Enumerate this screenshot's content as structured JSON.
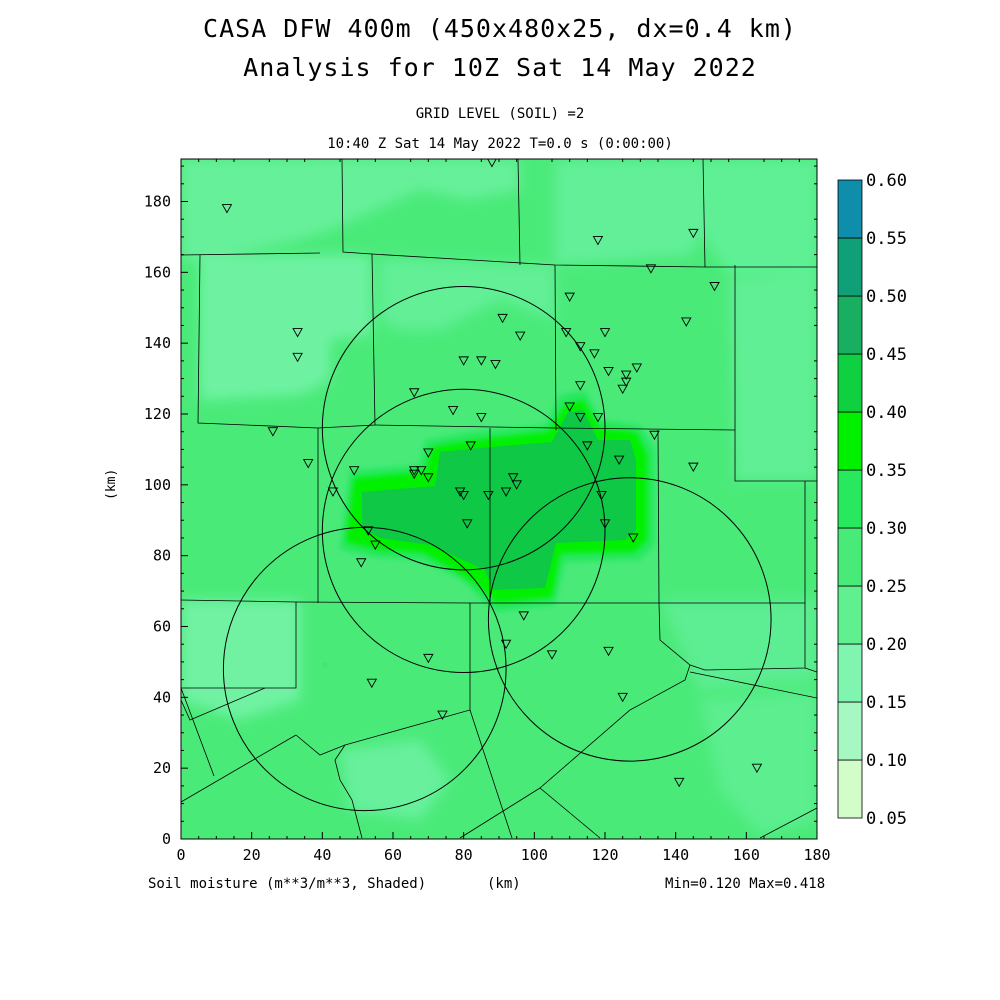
{
  "header": {
    "title_line1": "CASA DFW 400m (450x480x25, dx=0.4 km)",
    "title_line2": "Analysis for 10Z Sat 14 May 2022",
    "subtitle_line1": "GRID LEVEL (SOIL) =2",
    "subtitle_line2": "10:40 Z Sat 14 May 2022   T=0.0 s (0:00:00)"
  },
  "footer": {
    "field_label": "Soil moisture (m**3/m**3, Shaded)",
    "x_unit": "(km)",
    "min_max": "Min=0.120 Max=0.418"
  },
  "axes": {
    "ylabel": "(km)",
    "x_ticks": [
      "0",
      "20",
      "40",
      "60",
      "80",
      "100",
      "120",
      "140",
      "160",
      "180"
    ],
    "y_ticks": [
      "0",
      "20",
      "40",
      "60",
      "80",
      "100",
      "120",
      "140",
      "160",
      "180"
    ],
    "xlim": [
      0,
      180
    ],
    "ylim": [
      0,
      192
    ]
  },
  "colorbar": {
    "levels": [
      "0.05",
      "0.10",
      "0.15",
      "0.20",
      "0.25",
      "0.30",
      "0.35",
      "0.40",
      "0.45",
      "0.50",
      "0.55",
      "0.60"
    ],
    "colors": [
      "#d2fcc8",
      "#a6f8c2",
      "#80f5b0",
      "#60f090",
      "#48ea78",
      "#28e85e",
      "#00f000",
      "#0ed040",
      "#18b060",
      "#10a078",
      "#0f8eac",
      "#1670e8"
    ]
  },
  "colors": {
    "background_field": "#4aea79",
    "circle_line": "#000000",
    "county_line": "#000000"
  },
  "chart_data": {
    "type": "heatmap",
    "field": "soil moisture",
    "units": "m**3/m**3",
    "min": 0.12,
    "max": 0.418,
    "radar_circles_center_km": [
      [
        80,
        116
      ],
      [
        80,
        87
      ],
      [
        52,
        48
      ],
      [
        127,
        62
      ]
    ],
    "stations_km": [
      [
        13,
        178
      ],
      [
        88,
        191
      ],
      [
        118,
        169
      ],
      [
        145,
        171
      ],
      [
        151,
        156
      ],
      [
        133,
        161
      ],
      [
        110,
        153
      ],
      [
        143,
        146
      ],
      [
        33,
        143
      ],
      [
        91,
        147
      ],
      [
        96,
        142
      ],
      [
        109,
        143
      ],
      [
        120,
        143
      ],
      [
        113,
        139
      ],
      [
        117,
        137
      ],
      [
        80,
        135
      ],
      [
        85,
        135
      ],
      [
        89,
        134
      ],
      [
        33,
        136
      ],
      [
        121,
        132
      ],
      [
        129,
        133
      ],
      [
        126,
        131
      ],
      [
        126,
        129
      ],
      [
        125,
        127
      ],
      [
        113,
        128
      ],
      [
        66,
        126
      ],
      [
        77,
        121
      ],
      [
        85,
        119
      ],
      [
        110,
        122
      ],
      [
        113,
        119
      ],
      [
        118,
        119
      ],
      [
        26,
        115
      ],
      [
        82,
        111
      ],
      [
        115,
        111
      ],
      [
        134,
        114
      ],
      [
        36,
        106
      ],
      [
        70,
        109
      ],
      [
        124,
        107
      ],
      [
        145,
        105
      ],
      [
        49,
        104
      ],
      [
        66,
        104
      ],
      [
        68,
        104
      ],
      [
        66,
        103
      ],
      [
        70,
        102
      ],
      [
        94,
        102
      ],
      [
        95,
        100
      ],
      [
        92,
        98
      ],
      [
        43,
        98
      ],
      [
        79,
        98
      ],
      [
        80,
        97
      ],
      [
        87,
        97
      ],
      [
        119,
        97
      ],
      [
        53,
        87
      ],
      [
        81,
        89
      ],
      [
        120,
        89
      ],
      [
        128,
        85
      ],
      [
        55,
        83
      ],
      [
        51,
        78
      ],
      [
        97,
        63
      ],
      [
        92,
        55
      ],
      [
        121,
        53
      ],
      [
        105,
        52
      ],
      [
        70,
        51
      ],
      [
        54,
        44
      ],
      [
        125,
        40
      ],
      [
        74,
        35
      ],
      [
        141,
        16
      ],
      [
        163,
        20
      ]
    ]
  }
}
